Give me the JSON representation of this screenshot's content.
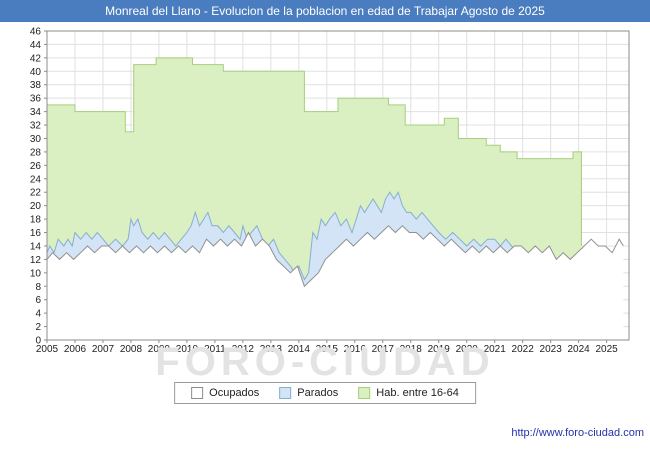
{
  "title_bar": {
    "text": "Monreal del Llano - Evolucion de la poblacion en edad de Trabajar Agosto de 2025"
  },
  "watermark": "FORO-CIUDAD",
  "footer": {
    "url": "http://www.foro-ciudad.com"
  },
  "colors": {
    "title_bar_bg": "#4a7dbf",
    "link": "#2233aa",
    "watermark": "#e3e3e3",
    "grid": "#e0e0e0",
    "frame": "#8c8c8c",
    "axis_text": "#222222"
  },
  "chart_data": {
    "type": "area",
    "title": "Monreal del Llano - Evolucion de la poblacion en edad de Trabajar Agosto de 2025",
    "xlabel": "",
    "ylabel": "",
    "x_range": [
      2005,
      2025.8
    ],
    "y_range": [
      0,
      46
    ],
    "y_tick_step": 2,
    "x_ticks": [
      2005,
      2006,
      2007,
      2008,
      2009,
      2010,
      2011,
      2012,
      2013,
      2014,
      2015,
      2016,
      2017,
      2018,
      2019,
      2020,
      2021,
      2022,
      2023,
      2024,
      2025
    ],
    "grid": true,
    "legend_position": "bottom",
    "legend": [
      {
        "label": "Ocupados",
        "fill": "#ffffff",
        "stroke": "#8c8c8c"
      },
      {
        "label": "Parados",
        "fill": "#d2e4f5",
        "stroke": "#88aed2"
      },
      {
        "label": "Hab. entre 16-64",
        "fill": "#daf0c2",
        "stroke": "#a6cf7c"
      }
    ],
    "series": [
      {
        "name": "Hab. entre 16-64",
        "fill": "#daf0c2",
        "stroke": "#a6cf7c",
        "points": [
          [
            2005.0,
            35
          ],
          [
            2006.0,
            35
          ],
          [
            2006.0,
            34
          ],
          [
            2007.8,
            34
          ],
          [
            2007.8,
            31
          ],
          [
            2008.1,
            31
          ],
          [
            2008.1,
            41
          ],
          [
            2008.9,
            41
          ],
          [
            2008.9,
            42
          ],
          [
            2010.2,
            42
          ],
          [
            2010.2,
            41
          ],
          [
            2011.3,
            41
          ],
          [
            2011.3,
            40
          ],
          [
            2014.2,
            40
          ],
          [
            2014.2,
            34
          ],
          [
            2015.4,
            34
          ],
          [
            2015.4,
            36
          ],
          [
            2017.2,
            36
          ],
          [
            2017.2,
            35
          ],
          [
            2017.8,
            35
          ],
          [
            2017.8,
            32
          ],
          [
            2019.2,
            32
          ],
          [
            2019.2,
            33
          ],
          [
            2019.7,
            33
          ],
          [
            2019.7,
            30
          ],
          [
            2020.7,
            30
          ],
          [
            2020.7,
            29
          ],
          [
            2021.2,
            29
          ],
          [
            2021.2,
            28
          ],
          [
            2021.8,
            28
          ],
          [
            2021.8,
            27
          ],
          [
            2023.8,
            27
          ],
          [
            2023.8,
            28
          ],
          [
            2024.1,
            28
          ],
          [
            2024.1,
            14
          ]
        ]
      },
      {
        "name": "Parados",
        "fill": "#d2e4f5",
        "stroke": "#88aed2",
        "points": [
          [
            2005.0,
            13
          ],
          [
            2005.1,
            14
          ],
          [
            2005.25,
            13
          ],
          [
            2005.4,
            15
          ],
          [
            2005.6,
            14
          ],
          [
            2005.75,
            15
          ],
          [
            2005.9,
            14
          ],
          [
            2006.0,
            16
          ],
          [
            2006.2,
            15
          ],
          [
            2006.4,
            16
          ],
          [
            2006.6,
            15
          ],
          [
            2006.8,
            16
          ],
          [
            2007.0,
            15
          ],
          [
            2007.2,
            14
          ],
          [
            2007.45,
            15
          ],
          [
            2007.7,
            14
          ],
          [
            2007.9,
            15
          ],
          [
            2008.0,
            18
          ],
          [
            2008.1,
            17
          ],
          [
            2008.25,
            18
          ],
          [
            2008.4,
            16
          ],
          [
            2008.6,
            15
          ],
          [
            2008.8,
            16
          ],
          [
            2009.0,
            15
          ],
          [
            2009.2,
            16
          ],
          [
            2009.4,
            15
          ],
          [
            2009.6,
            14
          ],
          [
            2009.8,
            15
          ],
          [
            2010.0,
            16
          ],
          [
            2010.15,
            17
          ],
          [
            2010.3,
            19
          ],
          [
            2010.45,
            17
          ],
          [
            2010.6,
            18
          ],
          [
            2010.75,
            19
          ],
          [
            2010.9,
            17
          ],
          [
            2011.1,
            17
          ],
          [
            2011.3,
            16
          ],
          [
            2011.5,
            17
          ],
          [
            2011.7,
            16
          ],
          [
            2011.9,
            15
          ],
          [
            2012.0,
            17
          ],
          [
            2012.15,
            15
          ],
          [
            2012.3,
            16
          ],
          [
            2012.5,
            17
          ],
          [
            2012.7,
            15
          ],
          [
            2012.9,
            14
          ],
          [
            2013.1,
            15
          ],
          [
            2013.3,
            13
          ],
          [
            2013.5,
            12
          ],
          [
            2013.7,
            11
          ],
          [
            2013.85,
            10
          ],
          [
            2014.0,
            11
          ],
          [
            2014.2,
            9
          ],
          [
            2014.35,
            10
          ],
          [
            2014.5,
            16
          ],
          [
            2014.65,
            15
          ],
          [
            2014.8,
            18
          ],
          [
            2014.95,
            17
          ],
          [
            2015.1,
            18
          ],
          [
            2015.3,
            19
          ],
          [
            2015.5,
            17
          ],
          [
            2015.7,
            18
          ],
          [
            2015.9,
            16
          ],
          [
            2016.05,
            18
          ],
          [
            2016.2,
            20
          ],
          [
            2016.35,
            19
          ],
          [
            2016.5,
            20
          ],
          [
            2016.65,
            21
          ],
          [
            2016.8,
            20
          ],
          [
            2016.95,
            19
          ],
          [
            2017.1,
            21
          ],
          [
            2017.25,
            22
          ],
          [
            2017.4,
            21
          ],
          [
            2017.55,
            22
          ],
          [
            2017.7,
            20
          ],
          [
            2017.85,
            19
          ],
          [
            2018.0,
            19
          ],
          [
            2018.2,
            18
          ],
          [
            2018.4,
            19
          ],
          [
            2018.6,
            18
          ],
          [
            2018.8,
            17
          ],
          [
            2019.0,
            16
          ],
          [
            2019.25,
            15
          ],
          [
            2019.5,
            16
          ],
          [
            2019.75,
            15
          ],
          [
            2020.0,
            14
          ],
          [
            2020.25,
            15
          ],
          [
            2020.5,
            14
          ],
          [
            2020.75,
            15
          ],
          [
            2021.0,
            15
          ],
          [
            2021.2,
            14
          ],
          [
            2021.4,
            15
          ],
          [
            2021.6,
            14
          ],
          [
            2021.8,
            13
          ]
        ]
      },
      {
        "name": "Ocupados",
        "fill": "#ffffff",
        "stroke": "#909090",
        "points": [
          [
            2005.0,
            12
          ],
          [
            2005.2,
            13
          ],
          [
            2005.45,
            12
          ],
          [
            2005.7,
            13
          ],
          [
            2005.95,
            12
          ],
          [
            2006.2,
            13
          ],
          [
            2006.45,
            14
          ],
          [
            2006.7,
            13
          ],
          [
            2006.95,
            14
          ],
          [
            2007.2,
            14
          ],
          [
            2007.45,
            13
          ],
          [
            2007.7,
            14
          ],
          [
            2007.95,
            13
          ],
          [
            2008.2,
            14
          ],
          [
            2008.45,
            13
          ],
          [
            2008.7,
            14
          ],
          [
            2008.95,
            13
          ],
          [
            2009.2,
            14
          ],
          [
            2009.45,
            13
          ],
          [
            2009.7,
            14
          ],
          [
            2009.95,
            13
          ],
          [
            2010.2,
            14
          ],
          [
            2010.45,
            13
          ],
          [
            2010.7,
            15
          ],
          [
            2010.95,
            14
          ],
          [
            2011.2,
            15
          ],
          [
            2011.45,
            14
          ],
          [
            2011.7,
            15
          ],
          [
            2011.95,
            14
          ],
          [
            2012.2,
            16
          ],
          [
            2012.45,
            14
          ],
          [
            2012.7,
            15
          ],
          [
            2012.95,
            14
          ],
          [
            2013.2,
            12
          ],
          [
            2013.45,
            11
          ],
          [
            2013.7,
            10
          ],
          [
            2013.95,
            11
          ],
          [
            2014.2,
            8
          ],
          [
            2014.45,
            9
          ],
          [
            2014.7,
            10
          ],
          [
            2014.95,
            12
          ],
          [
            2015.2,
            13
          ],
          [
            2015.45,
            14
          ],
          [
            2015.7,
            15
          ],
          [
            2015.95,
            14
          ],
          [
            2016.2,
            15
          ],
          [
            2016.45,
            16
          ],
          [
            2016.7,
            15
          ],
          [
            2016.95,
            16
          ],
          [
            2017.2,
            17
          ],
          [
            2017.45,
            16
          ],
          [
            2017.7,
            17
          ],
          [
            2017.95,
            16
          ],
          [
            2018.2,
            16
          ],
          [
            2018.45,
            15
          ],
          [
            2018.7,
            16
          ],
          [
            2018.95,
            15
          ],
          [
            2019.2,
            14
          ],
          [
            2019.45,
            15
          ],
          [
            2019.7,
            14
          ],
          [
            2019.95,
            13
          ],
          [
            2020.2,
            14
          ],
          [
            2020.45,
            13
          ],
          [
            2020.7,
            14
          ],
          [
            2020.95,
            13
          ],
          [
            2021.2,
            14
          ],
          [
            2021.45,
            13
          ],
          [
            2021.7,
            14
          ],
          [
            2021.95,
            14
          ],
          [
            2022.2,
            13
          ],
          [
            2022.45,
            14
          ],
          [
            2022.7,
            13
          ],
          [
            2022.95,
            14
          ],
          [
            2023.2,
            12
          ],
          [
            2023.45,
            13
          ],
          [
            2023.7,
            12
          ],
          [
            2023.95,
            13
          ],
          [
            2024.2,
            14
          ],
          [
            2024.45,
            15
          ],
          [
            2024.7,
            14
          ],
          [
            2024.95,
            14
          ],
          [
            2025.2,
            13
          ],
          [
            2025.45,
            15
          ],
          [
            2025.6,
            14
          ]
        ]
      }
    ]
  }
}
